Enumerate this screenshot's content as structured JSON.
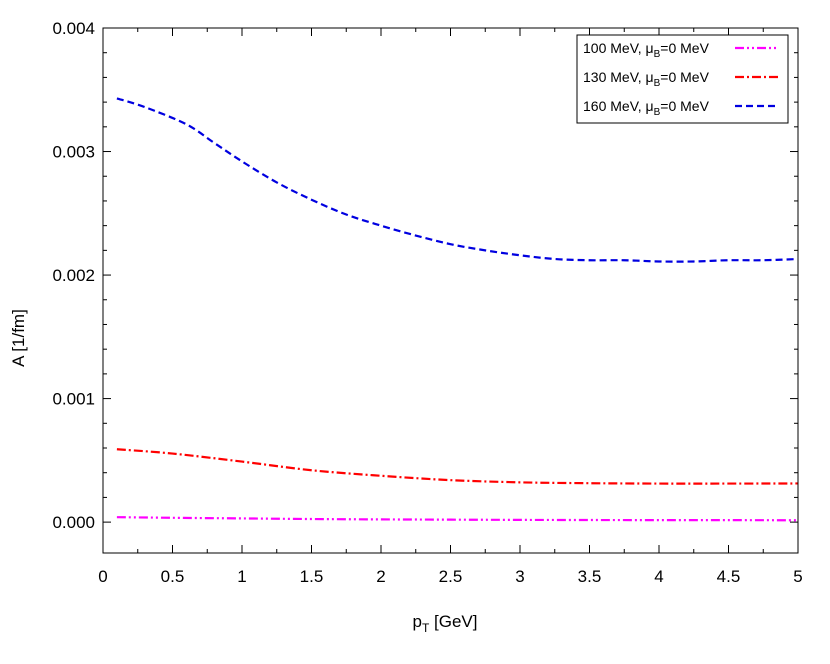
{
  "chart_data": {
    "type": "line",
    "xlabel": "p",
    "xlabel_sub": "T",
    "xlabel_rest": " [GeV]",
    "ylabel": "A [1/fm]",
    "xlim": [
      0,
      5
    ],
    "ylim": [
      -0.00025,
      0.004
    ],
    "x_ticks": [
      0,
      0.5,
      1,
      1.5,
      2,
      2.5,
      3,
      3.5,
      4,
      4.5,
      5
    ],
    "x_tick_labels": [
      "0",
      "0.5",
      "1",
      "1.5",
      "2",
      "2.5",
      "3",
      "3.5",
      "4",
      "4.5",
      "5"
    ],
    "y_ticks": [
      0,
      0.001,
      0.002,
      0.003,
      0.004
    ],
    "y_tick_labels": [
      "0.000",
      "0.001",
      "0.002",
      "0.003",
      "0.004"
    ],
    "grid": false,
    "legend_position": "top-right",
    "series": [
      {
        "name_main": "100 MeV, μ",
        "name_sub": "B",
        "name_rest": "=0 MeV",
        "color": "#ff00ff",
        "dash": "dash-dot-dot",
        "x": [
          0.1,
          0.5,
          1,
          1.5,
          2,
          2.5,
          3,
          3.5,
          4,
          4.5,
          5
        ],
        "y": [
          4e-05,
          3.5e-05,
          3e-05,
          2.5e-05,
          2.2e-05,
          2e-05,
          1.8e-05,
          1.7e-05,
          1.6e-05,
          1.6e-05,
          1.5e-05
        ]
      },
      {
        "name_main": "130 MeV, μ",
        "name_sub": "B",
        "name_rest": "=0 MeV",
        "color": "#ff0000",
        "dash": "dash-dot",
        "x": [
          0.1,
          0.5,
          1,
          1.5,
          2,
          2.5,
          3,
          3.5,
          4,
          4.5,
          5
        ],
        "y": [
          0.00059,
          0.000555,
          0.00049,
          0.00042,
          0.000375,
          0.00034,
          0.000322,
          0.000315,
          0.000312,
          0.000312,
          0.000313
        ]
      },
      {
        "name_main": "160 MeV, μ",
        "name_sub": "B",
        "name_rest": "=0 MeV",
        "color": "#0000e0",
        "dash": "dash",
        "x": [
          0.1,
          0.3,
          0.6,
          0.8,
          1,
          1.25,
          1.5,
          1.75,
          2,
          2.25,
          2.5,
          2.75,
          3,
          3.25,
          3.5,
          3.75,
          4,
          4.25,
          4.5,
          4.75,
          5
        ],
        "y": [
          0.00343,
          0.00336,
          0.00322,
          0.00307,
          0.00292,
          0.00275,
          0.00261,
          0.00249,
          0.0024,
          0.00232,
          0.00225,
          0.0022,
          0.00216,
          0.00213,
          0.00212,
          0.00212,
          0.00211,
          0.00211,
          0.00212,
          0.00212,
          0.00213
        ]
      }
    ]
  }
}
